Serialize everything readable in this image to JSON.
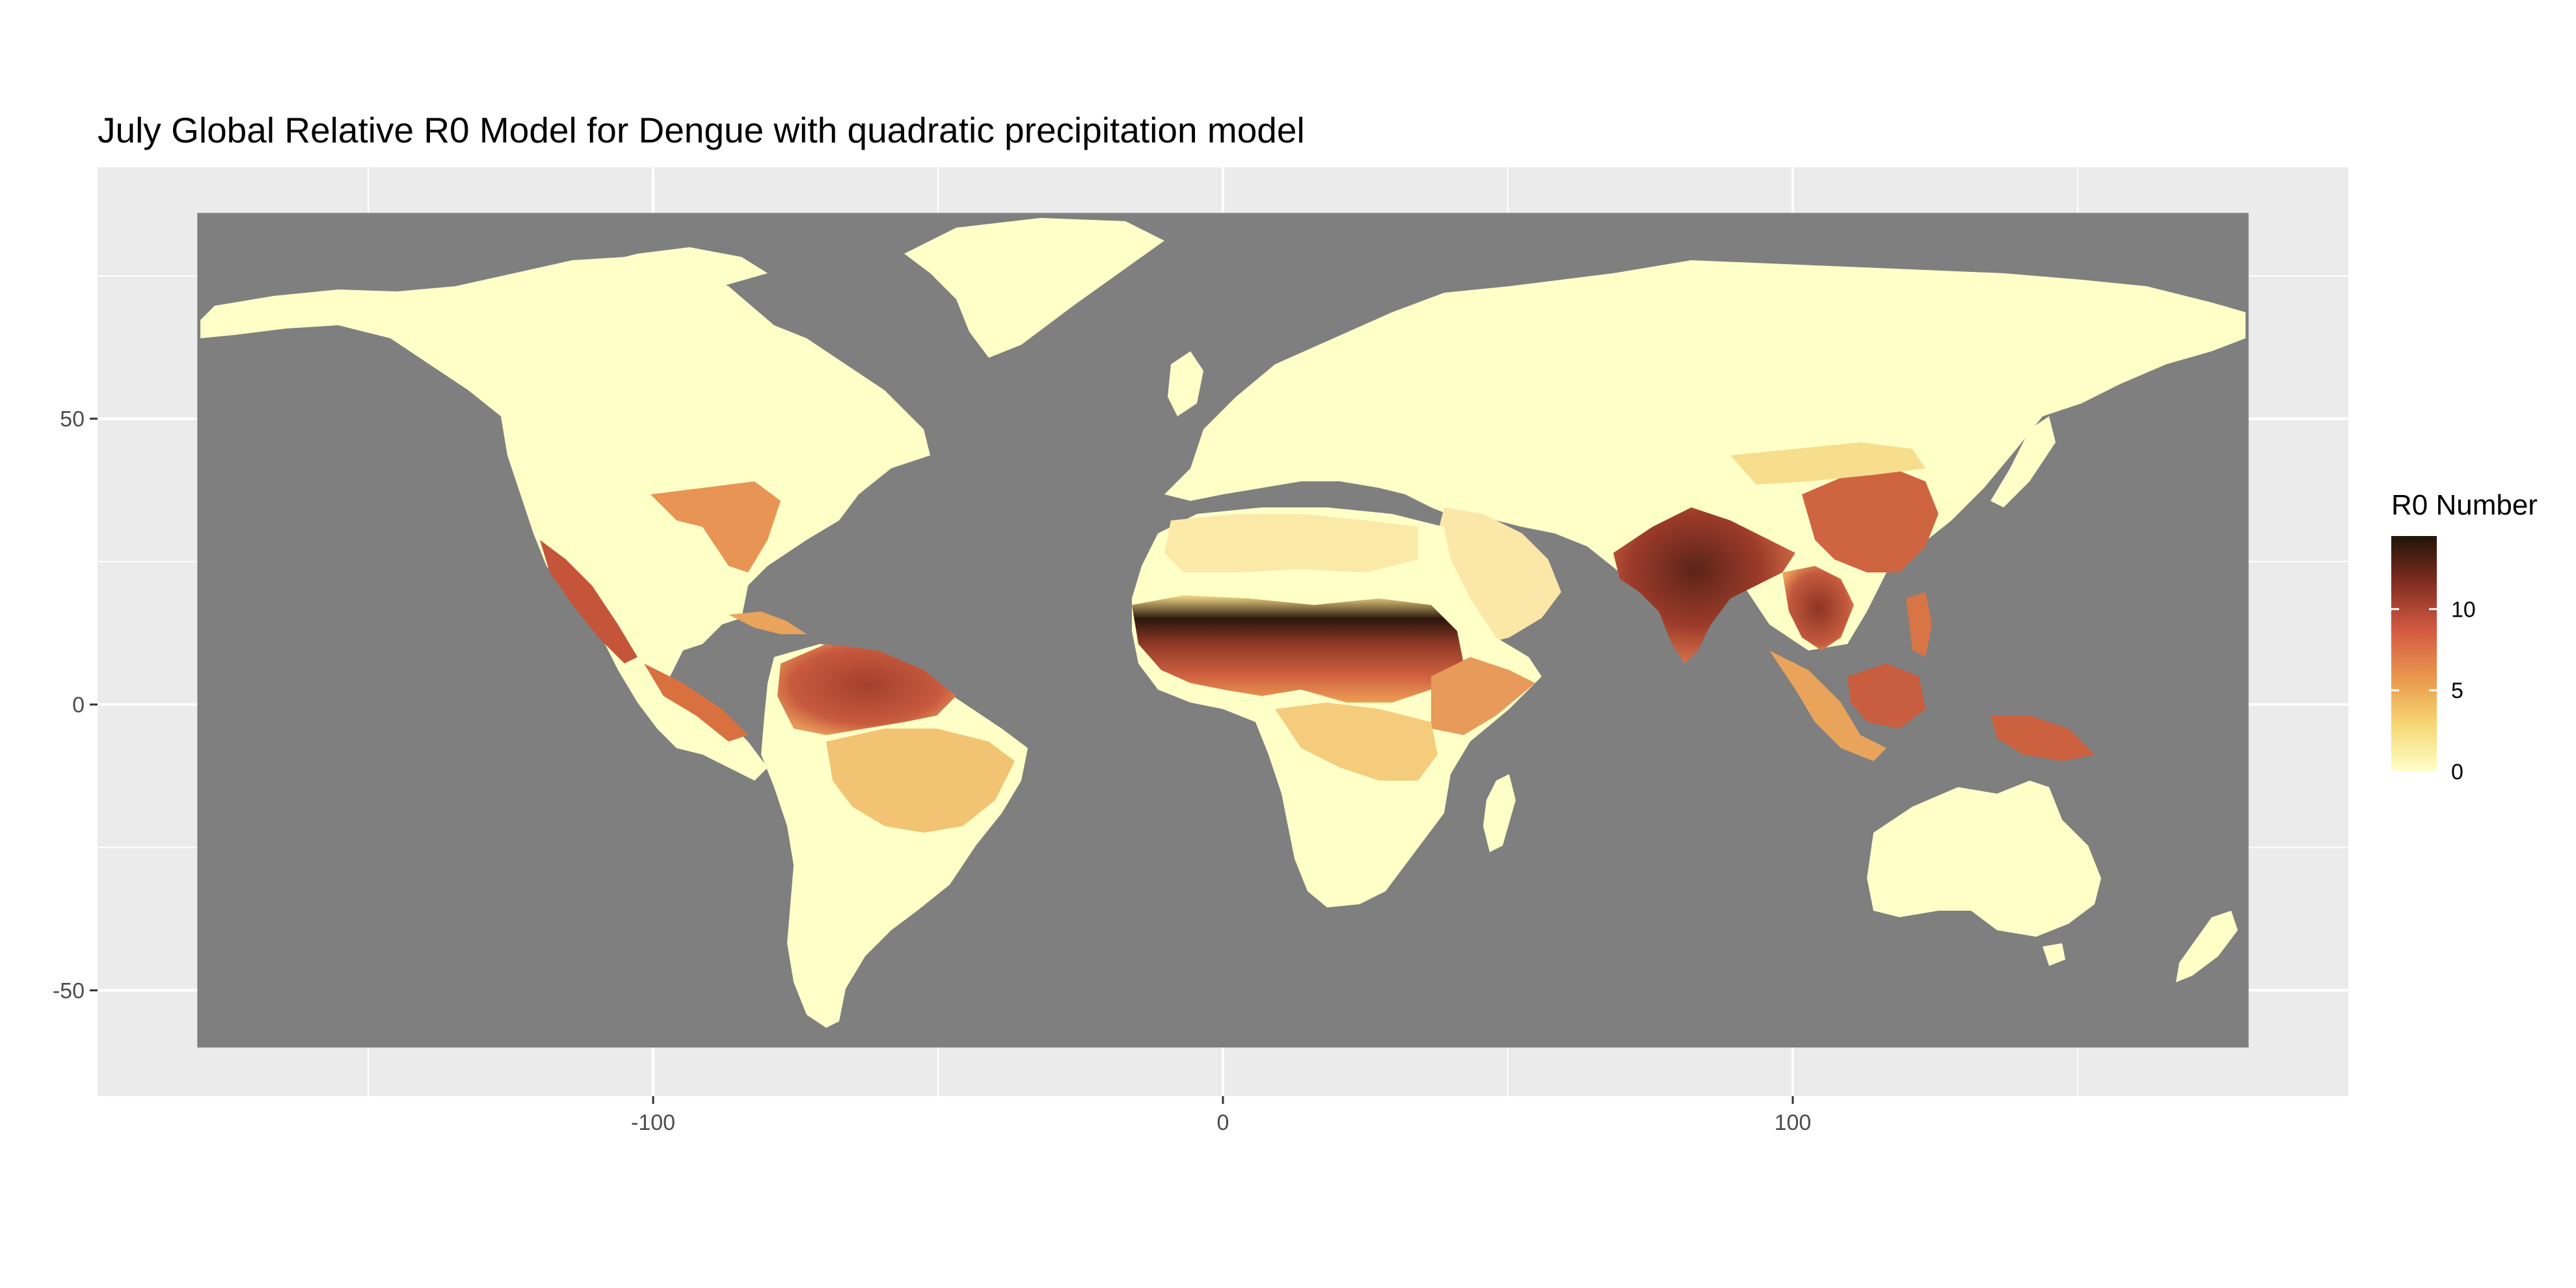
{
  "title": "July Global Relative R0 Model for Dengue with quadratic precipitation model",
  "colors": {
    "panel_background": "#ebebeb",
    "gridline": "#ffffff",
    "ocean": "#7f7f7f",
    "land_low": "#ffffc8",
    "scale": [
      "#ffffc8",
      "#f6d773",
      "#ec9d4f",
      "#d35a43",
      "#7a2a1e",
      "#1f1409"
    ]
  },
  "map": {
    "x_axis": {
      "range": [
        -197.5,
        197.5
      ],
      "ticks": [
        -100,
        0,
        100
      ],
      "labels": [
        "-100",
        "0",
        "100"
      ]
    },
    "y_axis": {
      "range": [
        -68.5,
        94
      ],
      "ticks": [
        -50,
        0,
        50
      ],
      "labels": [
        "-50",
        "0",
        "50"
      ]
    },
    "extent": {
      "lon": [
        -180,
        180
      ],
      "lat": [
        -60,
        86
      ]
    }
  },
  "legend": {
    "title": "R0 Number",
    "range": [
      0,
      14.5
    ],
    "ticks": [
      0,
      5,
      10
    ],
    "labels": [
      "0",
      "5",
      "10"
    ]
  }
}
